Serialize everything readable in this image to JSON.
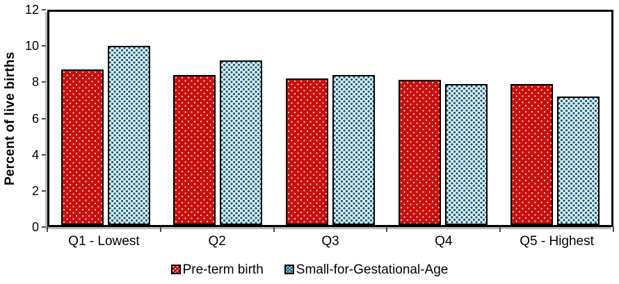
{
  "chart_data": {
    "type": "bar",
    "title": "",
    "xlabel": "",
    "ylabel": "Percent of live births",
    "ylim": [
      0,
      12
    ],
    "yticks": [
      0,
      2,
      4,
      6,
      8,
      10,
      12
    ],
    "grid": false,
    "legend_position": "bottom",
    "categories": [
      "Q1 - Lowest",
      "Q2",
      "Q3",
      "Q4",
      "Q5 - Highest"
    ],
    "series": [
      {
        "name": "Pre-term birth",
        "color": "#c5100f",
        "pattern": "light dots on red",
        "values": [
          8.6,
          8.3,
          8.1,
          8.0,
          7.8
        ]
      },
      {
        "name": "Small-for-Gestational-Age",
        "color": "#d9ebf3",
        "pattern": "dark teal squares on light blue",
        "values": [
          9.9,
          9.1,
          8.3,
          7.8,
          7.1
        ]
      }
    ]
  }
}
